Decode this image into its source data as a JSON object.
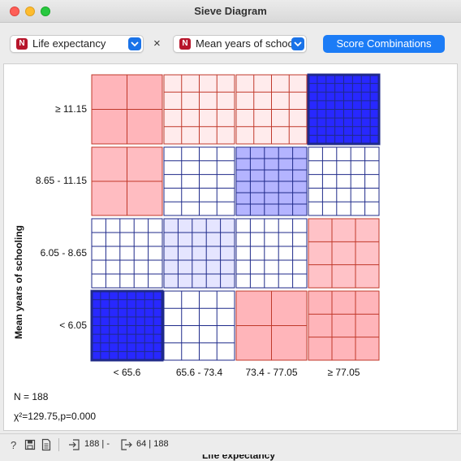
{
  "window": {
    "title": "Sieve Diagram"
  },
  "controls": {
    "attr1": {
      "badge": "N",
      "value": "Life expectancy"
    },
    "attr2": {
      "badge": "N",
      "value": "Mean years of schooling"
    },
    "times": "×",
    "score_button": "Score Combinations"
  },
  "chart_data": {
    "type": "sieve",
    "xlabel": "Life expectancy",
    "ylabel": "Mean years of schooling",
    "x_categories": [
      "< 65.6",
      "65.6 - 73.4",
      "73.4 - 77.05",
      "≥ 77.05"
    ],
    "y_categories": [
      "≥ 11.15",
      "8.65 - 11.15",
      "6.05 - 8.65",
      "< 6.05"
    ],
    "cells": [
      [
        {
          "color": "red",
          "intensity": 0.55,
          "grid": [
            2,
            2
          ]
        },
        {
          "color": "red",
          "intensity": 0.15,
          "grid": [
            4,
            4
          ]
        },
        {
          "color": "red",
          "intensity": 0.15,
          "grid": [
            4,
            4
          ]
        },
        {
          "color": "blue",
          "intensity": 1.0,
          "grid": [
            8,
            8
          ],
          "bold": true
        }
      ],
      [
        {
          "color": "red",
          "intensity": 0.5,
          "grid": [
            2,
            2
          ]
        },
        {
          "color": "white",
          "intensity": 0.0,
          "grid": [
            4,
            5
          ]
        },
        {
          "color": "blue",
          "intensity": 0.35,
          "grid": [
            5,
            6
          ]
        },
        {
          "color": "white",
          "intensity": 0.0,
          "grid": [
            5,
            5
          ]
        }
      ],
      [
        {
          "color": "white",
          "intensity": 0.0,
          "grid": [
            5,
            5
          ]
        },
        {
          "color": "blue",
          "intensity": 0.12,
          "grid": [
            5,
            5
          ]
        },
        {
          "color": "white",
          "intensity": 0.0,
          "grid": [
            5,
            5
          ]
        },
        {
          "color": "red",
          "intensity": 0.45,
          "grid": [
            3,
            3
          ]
        }
      ],
      [
        {
          "color": "blue",
          "intensity": 1.0,
          "grid": [
            8,
            8
          ],
          "bold": true
        },
        {
          "color": "white",
          "intensity": 0.0,
          "grid": [
            4,
            4
          ]
        },
        {
          "color": "red",
          "intensity": 0.55,
          "grid": [
            2,
            2
          ]
        },
        {
          "color": "red",
          "intensity": 0.55,
          "grid": [
            3,
            3
          ]
        }
      ]
    ]
  },
  "stats": {
    "n": "N = 188",
    "chi": "χ²=129.75,p=0.000"
  },
  "statusbar": {
    "input_text": "188 | -",
    "output_text": "64 | 188"
  }
}
